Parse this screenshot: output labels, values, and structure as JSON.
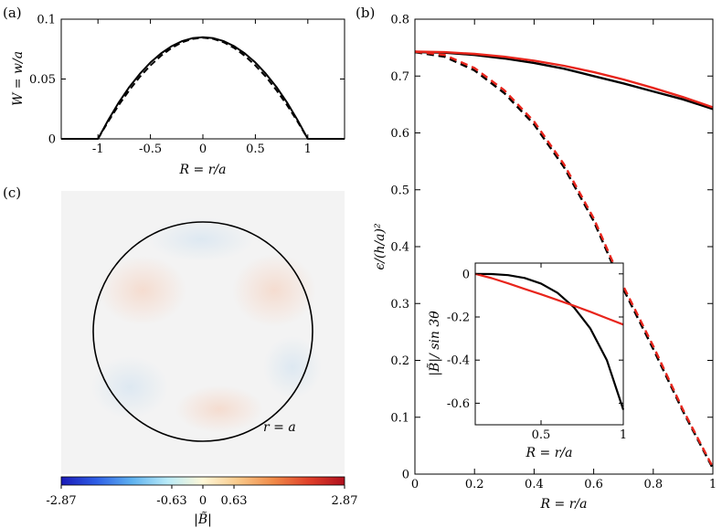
{
  "panels": {
    "a": "(a)",
    "b": "(b)",
    "c": "(c)"
  },
  "colors": {
    "black": "#000000",
    "red": "#e8251c",
    "background_field": "#f3f3f3"
  },
  "chart_data": [
    {
      "id": "a",
      "type": "line",
      "xlabel": "R = r/a",
      "ylabel": "W = w/a",
      "xlim": [
        -1.35,
        1.35
      ],
      "ylim": [
        0,
        0.1
      ],
      "xticks": [
        -1,
        -0.5,
        0,
        0.5,
        1
      ],
      "xtick_labels": [
        "-1",
        "-0.5",
        "0",
        "0.5",
        "1"
      ],
      "yticks": [
        0,
        0.05,
        0.1
      ],
      "ytick_labels": [
        "0",
        "0.05",
        "0.1"
      ],
      "series": [
        {
          "style": "solid",
          "color": "#000000",
          "x": [
            -1.35,
            -1.0,
            -0.9,
            -0.8,
            -0.7,
            -0.6,
            -0.5,
            -0.4,
            -0.3,
            -0.2,
            -0.1,
            0.0,
            0.1,
            0.2,
            0.3,
            0.4,
            0.5,
            0.6,
            0.7,
            0.8,
            0.9,
            1.0,
            1.35
          ],
          "y": [
            0,
            0,
            0.016,
            0.0306,
            0.0434,
            0.0544,
            0.0638,
            0.0714,
            0.0773,
            0.0816,
            0.0841,
            0.085,
            0.0841,
            0.0816,
            0.0773,
            0.0714,
            0.0638,
            0.0544,
            0.0434,
            0.0306,
            0.016,
            0,
            0
          ]
        },
        {
          "style": "dashed",
          "color": "#000000",
          "x": [
            -1.0,
            -0.9,
            -0.8,
            -0.7,
            -0.6,
            -0.5,
            -0.4,
            -0.3,
            -0.2,
            -0.1,
            0.0,
            0.1,
            0.2,
            0.3,
            0.4,
            0.5,
            0.6,
            0.7,
            0.8,
            0.9,
            1.0
          ],
          "y": [
            0,
            0.0148,
            0.0284,
            0.0408,
            0.0519,
            0.0613,
            0.0694,
            0.0759,
            0.0806,
            0.0835,
            0.0845,
            0.0835,
            0.0806,
            0.0759,
            0.0694,
            0.0613,
            0.0519,
            0.0408,
            0.0284,
            0.0148,
            0
          ]
        }
      ]
    },
    {
      "id": "b",
      "type": "line",
      "xlabel": "R = r/a",
      "ylabel": "ϵ/(h/a)²",
      "xlim": [
        0,
        1
      ],
      "ylim": [
        0,
        0.8
      ],
      "xticks": [
        0,
        0.2,
        0.4,
        0.6,
        0.8,
        1
      ],
      "xtick_labels": [
        "0",
        "0.2",
        "0.4",
        "0.6",
        "0.8",
        "1"
      ],
      "yticks": [
        0,
        0.1,
        0.2,
        0.3,
        0.4,
        0.5,
        0.6,
        0.7,
        0.8
      ],
      "ytick_labels": [
        "0",
        "0.1",
        "0.2",
        "0.3",
        "0.4",
        "0.5",
        "0.6",
        "0.7",
        "0.8"
      ],
      "series": [
        {
          "style": "solid",
          "color": "#000000",
          "x": [
            0,
            0.1,
            0.2,
            0.3,
            0.4,
            0.5,
            0.6,
            0.7,
            0.8,
            0.9,
            1.0
          ],
          "y": [
            0.742,
            0.741,
            0.737,
            0.731,
            0.723,
            0.713,
            0.7,
            0.687,
            0.673,
            0.659,
            0.642
          ]
        },
        {
          "style": "solid",
          "color": "#e8251c",
          "x": [
            0,
            0.1,
            0.2,
            0.3,
            0.4,
            0.5,
            0.6,
            0.7,
            0.8,
            0.9,
            1.0
          ],
          "y": [
            0.743,
            0.742,
            0.739,
            0.734,
            0.727,
            0.718,
            0.707,
            0.694,
            0.679,
            0.663,
            0.645
          ]
        },
        {
          "style": "dashed",
          "color": "#000000",
          "x": [
            0,
            0.1,
            0.2,
            0.3,
            0.4,
            0.5,
            0.6,
            0.7,
            0.8,
            0.9,
            1.0
          ],
          "y": [
            0.742,
            0.734,
            0.71,
            0.67,
            0.615,
            0.54,
            0.445,
            0.325,
            0.22,
            0.11,
            0.01
          ]
        },
        {
          "style": "dashed",
          "color": "#e8251c",
          "x": [
            0,
            0.1,
            0.2,
            0.3,
            0.4,
            0.5,
            0.6,
            0.7,
            0.8,
            0.9,
            1.0
          ],
          "y": [
            0.743,
            0.737,
            0.714,
            0.675,
            0.62,
            0.545,
            0.45,
            0.33,
            0.225,
            0.113,
            0.012
          ]
        }
      ],
      "inset": {
        "type": "line",
        "xlabel": "R = r/a",
        "ylabel": "|B̃|/ sin 3θ",
        "xlim": [
          0.1,
          1
        ],
        "ylim": [
          -0.7,
          0.05
        ],
        "xticks": [
          0.5,
          1
        ],
        "xtick_labels": [
          "0.5",
          "1"
        ],
        "yticks": [
          0,
          -0.2,
          -0.4,
          -0.6
        ],
        "ytick_labels": [
          "0",
          "-0.2",
          "-0.4",
          "-0.6"
        ],
        "series": [
          {
            "style": "solid",
            "color": "#000000",
            "x": [
              0.1,
              0.2,
              0.3,
              0.4,
              0.5,
              0.6,
              0.7,
              0.8,
              0.9,
              1.0
            ],
            "y": [
              0,
              -0.001,
              -0.006,
              -0.019,
              -0.045,
              -0.088,
              -0.155,
              -0.254,
              -0.4,
              -0.63
            ]
          },
          {
            "style": "solid",
            "color": "#e8251c",
            "x": [
              0.1,
              0.2,
              0.3,
              0.4,
              0.5,
              0.6,
              0.7,
              0.8,
              0.9,
              1.0
            ],
            "y": [
              0,
              -0.02,
              -0.044,
              -0.07,
              -0.095,
              -0.121,
              -0.148,
              -0.176,
              -0.206,
              -0.235
            ]
          }
        ]
      }
    },
    {
      "id": "c",
      "type": "heatmap",
      "circle_label": "r = a",
      "colorbar": {
        "label": "|B̃|",
        "min": -2.87,
        "max": 2.87,
        "ticks": [
          -2.87,
          -0.63,
          0,
          0.63,
          2.87
        ],
        "tick_labels": [
          "-2.87",
          "-0.63",
          "0",
          "0.63",
          "2.87"
        ],
        "colors": [
          "#1a1ab8",
          "#2f5fe6",
          "#5fb2f0",
          "#b9ebf8",
          "#fff8d8",
          "#f9c98a",
          "#f08a48",
          "#e0402a",
          "#b0101e"
        ]
      }
    }
  ]
}
